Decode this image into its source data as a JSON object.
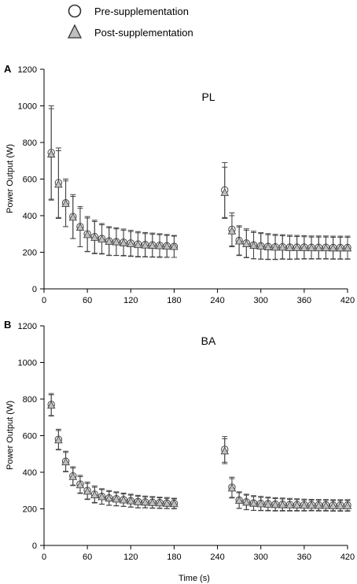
{
  "legend": {
    "items": [
      {
        "label": "Pre-supplementation",
        "marker": "circle",
        "fill": "#ffffff"
      },
      {
        "label": "Post-supplementation",
        "marker": "triangle",
        "fill": "#bfbfbf"
      }
    ]
  },
  "colors": {
    "axis": "#000000",
    "marker_stroke": "#444444",
    "triangle_fill": "#bfbfbf",
    "circle_fill": "#ffffff"
  },
  "chart_data": [
    {
      "panel_label": "A",
      "title": "PL",
      "type": "scatter",
      "xlabel": "",
      "ylabel": "Power Output (W)",
      "xlim": [
        0,
        420
      ],
      "ylim": [
        0,
        1200
      ],
      "xticks": [
        0,
        60,
        120,
        180,
        240,
        300,
        360,
        420
      ],
      "yticks": [
        0,
        200,
        400,
        600,
        800,
        1000,
        1200
      ],
      "series": [
        {
          "name": "Pre-supplementation",
          "marker": "circle",
          "x": [
            10,
            20,
            30,
            40,
            50,
            60,
            70,
            80,
            90,
            100,
            110,
            120,
            130,
            140,
            150,
            160,
            170,
            180,
            250,
            260,
            270,
            280,
            290,
            300,
            310,
            320,
            330,
            340,
            350,
            360,
            370,
            380,
            390,
            400,
            410,
            420
          ],
          "y": [
            745,
            580,
            470,
            395,
            340,
            300,
            285,
            275,
            262,
            258,
            255,
            250,
            245,
            242,
            240,
            238,
            235,
            232,
            540,
            325,
            265,
            250,
            240,
            235,
            232,
            230,
            230,
            228,
            228,
            228,
            227,
            227,
            227,
            226,
            226,
            226
          ],
          "err": [
            255,
            190,
            130,
            120,
            110,
            95,
            90,
            82,
            78,
            75,
            72,
            70,
            68,
            66,
            65,
            63,
            62,
            60,
            150,
            90,
            80,
            78,
            75,
            72,
            70,
            68,
            66,
            65,
            64,
            63,
            62,
            62,
            62,
            62,
            62,
            62
          ]
        },
        {
          "name": "Post-supplementation",
          "marker": "triangle",
          "x": [
            10,
            20,
            30,
            40,
            50,
            60,
            70,
            80,
            90,
            100,
            110,
            120,
            130,
            140,
            150,
            160,
            170,
            180,
            250,
            260,
            270,
            280,
            290,
            300,
            310,
            320,
            330,
            340,
            350,
            360,
            370,
            380,
            390,
            400,
            410,
            420
          ],
          "y": [
            735,
            570,
            465,
            390,
            335,
            295,
            280,
            270,
            258,
            255,
            250,
            245,
            240,
            238,
            236,
            234,
            232,
            230,
            525,
            315,
            260,
            245,
            236,
            232,
            228,
            226,
            226,
            224,
            224,
            224,
            223,
            223,
            223,
            222,
            222,
            222
          ],
          "err": [
            250,
            185,
            125,
            115,
            105,
            92,
            88,
            80,
            76,
            73,
            70,
            68,
            66,
            64,
            63,
            62,
            60,
            58,
            140,
            85,
            78,
            75,
            72,
            70,
            68,
            66,
            64,
            63,
            62,
            61,
            60,
            60,
            60,
            60,
            60,
            60
          ]
        }
      ]
    },
    {
      "panel_label": "B",
      "title": "BA",
      "type": "scatter",
      "xlabel": "Time (s)",
      "ylabel": "Power Output (W)",
      "xlim": [
        0,
        420
      ],
      "ylim": [
        0,
        1200
      ],
      "xticks": [
        0,
        60,
        120,
        180,
        240,
        300,
        360,
        420
      ],
      "yticks": [
        0,
        200,
        400,
        600,
        800,
        1000,
        1200
      ],
      "series": [
        {
          "name": "Pre-supplementation",
          "marker": "circle",
          "x": [
            10,
            20,
            30,
            40,
            50,
            60,
            70,
            80,
            90,
            100,
            110,
            120,
            130,
            140,
            150,
            160,
            170,
            180,
            250,
            260,
            270,
            280,
            290,
            300,
            310,
            320,
            330,
            340,
            350,
            360,
            370,
            380,
            390,
            400,
            410,
            420
          ],
          "y": [
            770,
            580,
            460,
            380,
            335,
            300,
            280,
            268,
            260,
            255,
            250,
            245,
            240,
            238,
            236,
            234,
            232,
            230,
            525,
            318,
            248,
            238,
            232,
            230,
            228,
            226,
            225,
            224,
            223,
            222,
            222,
            221,
            221,
            220,
            220,
            220
          ],
          "err": [
            60,
            55,
            55,
            50,
            48,
            46,
            45,
            42,
            40,
            38,
            36,
            35,
            34,
            32,
            31,
            30,
            30,
            28,
            70,
            55,
            45,
            42,
            40,
            38,
            36,
            35,
            34,
            33,
            32,
            31,
            30,
            30,
            30,
            30,
            30,
            30
          ]
        },
        {
          "name": "Post-supplementation",
          "marker": "triangle",
          "x": [
            10,
            20,
            30,
            40,
            50,
            60,
            70,
            80,
            90,
            100,
            110,
            120,
            130,
            140,
            150,
            160,
            170,
            180,
            250,
            260,
            270,
            280,
            290,
            300,
            310,
            320,
            330,
            340,
            350,
            360,
            370,
            380,
            390,
            400,
            410,
            420
          ],
          "y": [
            765,
            575,
            455,
            375,
            330,
            295,
            275,
            265,
            257,
            252,
            247,
            242,
            237,
            235,
            233,
            231,
            229,
            227,
            515,
            312,
            245,
            235,
            229,
            226,
            224,
            222,
            221,
            220,
            219,
            218,
            218,
            217,
            217,
            216,
            216,
            216
          ],
          "err": [
            58,
            53,
            53,
            48,
            46,
            44,
            43,
            40,
            38,
            36,
            34,
            33,
            32,
            30,
            30,
            29,
            28,
            27,
            68,
            53,
            43,
            40,
            38,
            36,
            35,
            34,
            33,
            32,
            31,
            30,
            29,
            29,
            29,
            29,
            29,
            29
          ]
        }
      ]
    }
  ]
}
